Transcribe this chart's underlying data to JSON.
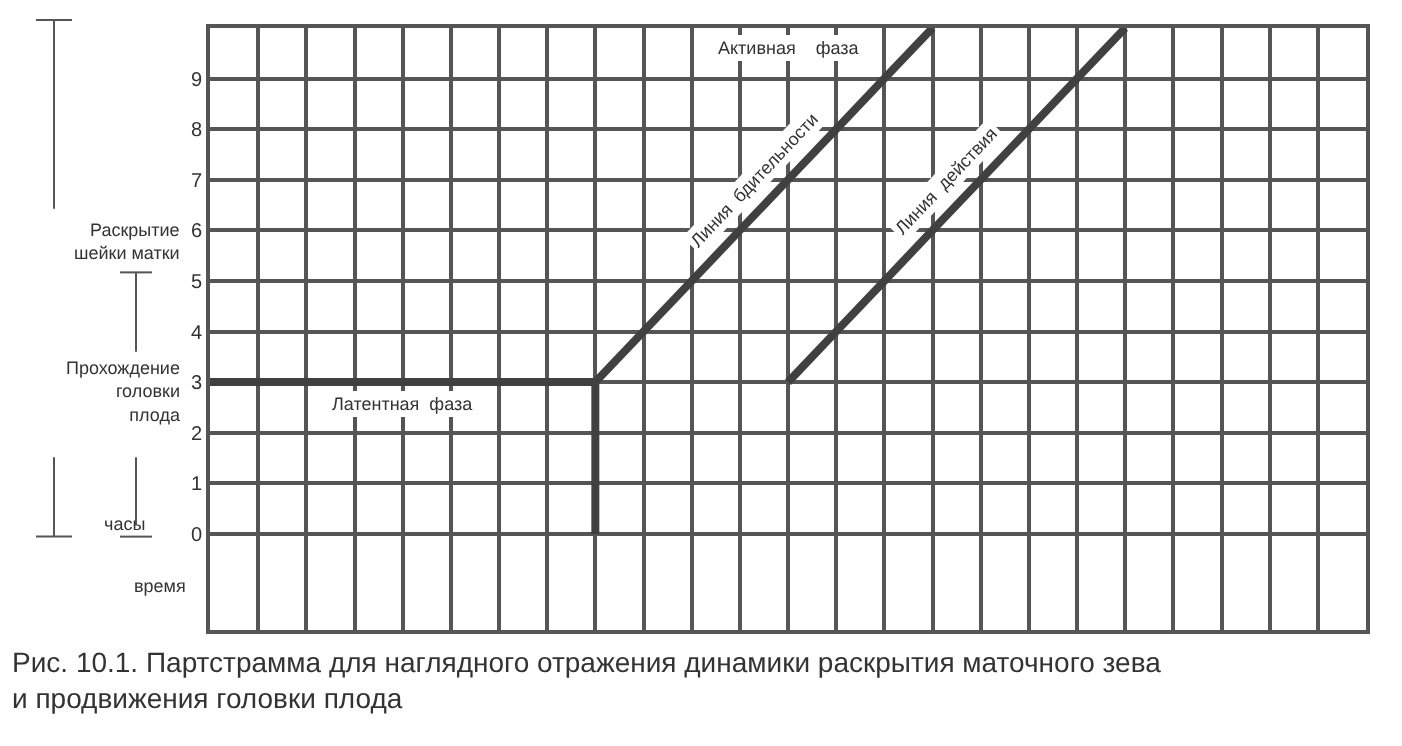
{
  "chart_data": {
    "type": "line",
    "tick_labels": "y",
    "grid": true,
    "marker": "none",
    "line_style": "solid",
    "categories": [
      null,
      null,
      null,
      null,
      null,
      null,
      null,
      null,
      null,
      null,
      null,
      null,
      null,
      null,
      null,
      null,
      null,
      null,
      null,
      null,
      null,
      null,
      null,
      null,
      null
    ],
    "ylim": [
      -1.9,
      10
    ],
    "yticks": [
      0,
      1,
      2,
      3,
      4,
      5,
      6,
      7,
      8,
      9
    ],
    "series": [
      {
        "color": "#404040",
        "values": [
          3,
          3,
          3,
          3,
          3,
          3,
          3,
          3,
          3,
          4,
          5,
          6,
          7,
          8,
          9,
          10,
          null,
          null,
          null,
          null,
          null,
          null,
          null,
          null,
          null
        ],
        "errors": [
          null,
          null,
          null,
          null,
          null,
          null,
          null,
          null,
          [
            0,
            3
          ],
          null,
          null,
          null,
          null,
          null,
          null,
          null,
          null,
          null,
          null,
          null,
          null,
          null,
          null,
          null,
          null
        ]
      },
      {
        "color": "#404040",
        "values": [
          null,
          null,
          null,
          null,
          null,
          null,
          null,
          null,
          null,
          null,
          null,
          null,
          3,
          4,
          5,
          6,
          7,
          8,
          9,
          10,
          null,
          null,
          null,
          null,
          null
        ]
      }
    ],
    "annotations": [
      "Активная    фаза",
      "Латентная  фаза",
      "Линия  бдительности",
      "Линия  действия",
      "Раскрытие\nшейки матки",
      "Прохождение\nголовки\nплода",
      "часы",
      "время",
      "Рис. 10.1. Партстрамма для наглядного отражения динамики раскрытия маточного зева\nи продвижения головки плода"
    ]
  }
}
